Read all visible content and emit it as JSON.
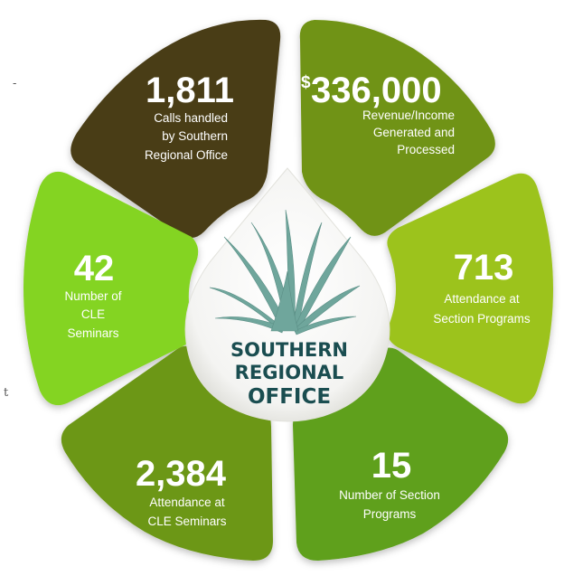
{
  "colors": {
    "dark_brown": "#4a3d15",
    "olive": "#6f9312",
    "lime": "#9cc31f",
    "bright_green": "#84d424",
    "green": "#5fa01f",
    "olive_green": "#6c9718",
    "center_text": "#1a4d50",
    "plant": "#6fa69c"
  },
  "center": {
    "title_lines": [
      "SOUTHERN",
      "REGIONAL",
      "OFFICE"
    ],
    "plant_icon": "agave-plant-icon"
  },
  "stats": [
    {
      "key": "calls",
      "value": "1,811",
      "desc": [
        "Calls handled",
        "by Southern",
        "Regional Office"
      ]
    },
    {
      "key": "revenue",
      "currency": "$",
      "value": "336,000",
      "desc": [
        "Revenue/Income",
        "Generated and",
        "Processed"
      ]
    },
    {
      "key": "section-attendance",
      "value": "713",
      "desc": [
        "Attendance at",
        "Section Programs"
      ]
    },
    {
      "key": "section-programs",
      "value": "15",
      "desc": [
        "Number of Section",
        "Programs"
      ]
    },
    {
      "key": "cle-attendance",
      "value": "2,384",
      "desc": [
        "Attendance at",
        "CLE Seminars"
      ]
    },
    {
      "key": "cle-seminars",
      "value": "42",
      "desc": [
        "Number of",
        "CLE",
        "Seminars"
      ]
    }
  ],
  "edge_fragments": [
    "-",
    "t"
  ]
}
